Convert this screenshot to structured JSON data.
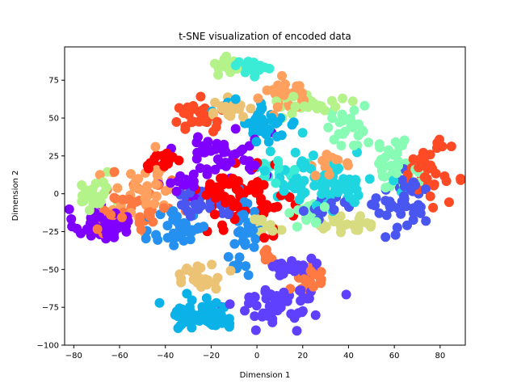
{
  "chart_data": {
    "type": "scatter",
    "title": "t-SNE visualization of encoded data",
    "xlabel": "Dimension 1",
    "ylabel": "Dimension 2",
    "xlim": [
      -84,
      91
    ],
    "ylim": [
      -100,
      97
    ],
    "xticks": [
      -80,
      -60,
      -40,
      -20,
      0,
      20,
      40,
      60,
      80
    ],
    "yticks": [
      -100,
      -75,
      -50,
      -25,
      0,
      25,
      50,
      75
    ],
    "grid": false,
    "legend": "none",
    "series": [
      {
        "color": "#8000ff",
        "clusters": [
          {
            "cx": -68,
            "cy": -20,
            "sx": 6,
            "sy": 5,
            "n": 60
          },
          {
            "cx": -14,
            "cy": 27,
            "sx": 10,
            "sy": 8,
            "n": 45
          },
          {
            "cx": -32,
            "cy": 5,
            "sx": 5,
            "sy": 5,
            "n": 20
          }
        ]
      },
      {
        "color": "#6040ff",
        "clusters": [
          {
            "cx": 10,
            "cy": -72,
            "sx": 9,
            "sy": 7,
            "n": 55
          },
          {
            "cx": 16,
            "cy": -48,
            "sx": 6,
            "sy": 4,
            "n": 25
          }
        ]
      },
      {
        "color": "#4a56f0",
        "clusters": [
          {
            "cx": 65,
            "cy": -8,
            "sx": 6,
            "sy": 9,
            "n": 45
          },
          {
            "cx": -25,
            "cy": -5,
            "sx": 6,
            "sy": 5,
            "n": 30
          },
          {
            "cx": 30,
            "cy": -10,
            "sx": 4,
            "sy": 4,
            "n": 15
          }
        ]
      },
      {
        "color": "#2590f0",
        "clusters": [
          {
            "cx": -33,
            "cy": -22,
            "sx": 6,
            "sy": 9,
            "n": 40
          },
          {
            "cx": -6,
            "cy": -28,
            "sx": 4,
            "sy": 12,
            "n": 35
          }
        ]
      },
      {
        "color": "#0ab2e8",
        "clusters": [
          {
            "cx": -22,
            "cy": -80,
            "sx": 8,
            "sy": 5,
            "n": 60
          },
          {
            "cx": 2,
            "cy": 47,
            "sx": 8,
            "sy": 7,
            "n": 40
          }
        ]
      },
      {
        "color": "#1fd6e0",
        "clusters": [
          {
            "cx": 28,
            "cy": 10,
            "sx": 12,
            "sy": 10,
            "n": 60
          },
          {
            "cx": 35,
            "cy": 2,
            "sx": 8,
            "sy": 6,
            "n": 25
          }
        ]
      },
      {
        "color": "#3aebd6",
        "clusters": [
          {
            "cx": 0,
            "cy": 84,
            "sx": 5,
            "sy": 2,
            "n": 20
          },
          {
            "cx": 8,
            "cy": 15,
            "sx": 5,
            "sy": 5,
            "n": 15
          }
        ]
      },
      {
        "color": "#88fbb4",
        "clusters": [
          {
            "cx": 60,
            "cy": 20,
            "sx": 5,
            "sy": 8,
            "n": 35
          },
          {
            "cx": 40,
            "cy": 43,
            "sx": 5,
            "sy": 6,
            "n": 25
          },
          {
            "cx": 22,
            "cy": -15,
            "sx": 5,
            "sy": 5,
            "n": 15
          }
        ]
      },
      {
        "color": "#b4f28a",
        "clusters": [
          {
            "cx": -70,
            "cy": 2,
            "sx": 4,
            "sy": 8,
            "n": 25
          },
          {
            "cx": -13,
            "cy": 84,
            "sx": 3,
            "sy": 3,
            "n": 15
          },
          {
            "cx": 22,
            "cy": 60,
            "sx": 7,
            "sy": 4,
            "n": 25
          }
        ]
      },
      {
        "color": "#d8dc80",
        "clusters": [
          {
            "cx": 40,
            "cy": -20,
            "sx": 6,
            "sy": 3,
            "n": 25
          },
          {
            "cx": 5,
            "cy": -20,
            "sx": 5,
            "sy": 4,
            "n": 15
          }
        ]
      },
      {
        "color": "#ecc274",
        "clusters": [
          {
            "cx": -25,
            "cy": -55,
            "sx": 6,
            "sy": 4,
            "n": 25
          },
          {
            "cx": -12,
            "cy": 56,
            "sx": 5,
            "sy": 3,
            "n": 20
          }
        ]
      },
      {
        "color": "#ffa05e",
        "clusters": [
          {
            "cx": 12,
            "cy": 66,
            "sx": 5,
            "sy": 5,
            "n": 30
          },
          {
            "cx": -48,
            "cy": 0,
            "sx": 10,
            "sy": 11,
            "n": 40
          },
          {
            "cx": 32,
            "cy": 20,
            "sx": 6,
            "sy": 4,
            "n": 15
          }
        ]
      },
      {
        "color": "#ff7a42",
        "clusters": [
          {
            "cx": -52,
            "cy": -10,
            "sx": 8,
            "sy": 10,
            "n": 35
          },
          {
            "cx": 22,
            "cy": -57,
            "sx": 4,
            "sy": 5,
            "n": 25
          },
          {
            "cx": 5,
            "cy": -42,
            "sx": 2,
            "sy": 3,
            "n": 8
          }
        ]
      },
      {
        "color": "#ff4a26",
        "clusters": [
          {
            "cx": 75,
            "cy": 15,
            "sx": 5,
            "sy": 9,
            "n": 40
          },
          {
            "cx": -28,
            "cy": 50,
            "sx": 5,
            "sy": 6,
            "n": 30
          }
        ]
      },
      {
        "color": "#ff0000",
        "clusters": [
          {
            "cx": -2,
            "cy": -2,
            "sx": 9,
            "sy": 10,
            "n": 60
          },
          {
            "cx": -18,
            "cy": 0,
            "sx": 5,
            "sy": 6,
            "n": 20
          },
          {
            "cx": -42,
            "cy": 20,
            "sx": 5,
            "sy": 5,
            "n": 15
          }
        ]
      }
    ]
  }
}
